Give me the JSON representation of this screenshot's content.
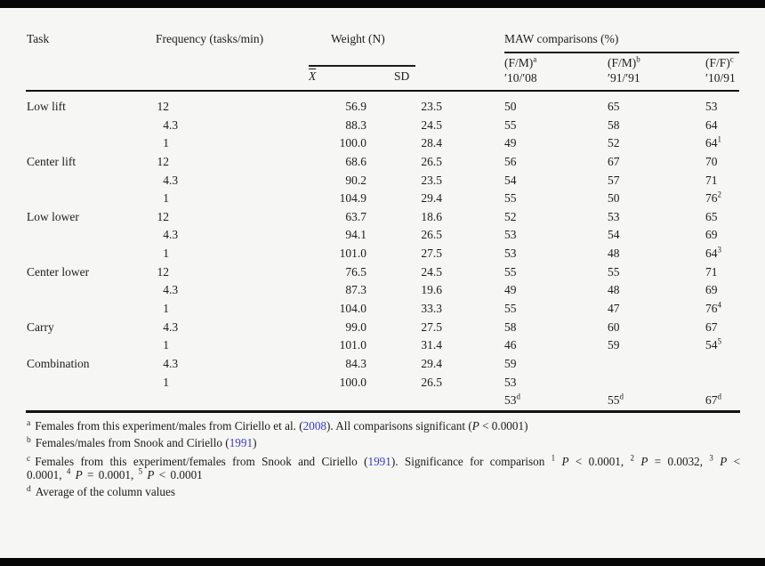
{
  "page": {
    "background": "#f6f6f5",
    "letterbox_color": "#060606",
    "text_color": "#1e1c1a",
    "link_color": "#3838d0"
  },
  "table": {
    "headers": {
      "task": "Task",
      "frequency": "Frequency (tasks/min)",
      "weight_group": "Weight (N)",
      "maw_group": "MAW comparisons (%)",
      "mean": "X",
      "sd": "SD",
      "c1": {
        "label": "(F/M)",
        "sup": "a",
        "years": "′10/′08"
      },
      "c2": {
        "label": "(F/M)",
        "sup": "b",
        "years": "′91/′91"
      },
      "c3": {
        "label": "(F/F)",
        "sup": "c",
        "years": "′10/91"
      }
    },
    "rows": [
      {
        "task": "Low lift",
        "freq": "12",
        "mean": "56.9",
        "sd": "23.5",
        "c1": "50",
        "c1sup": "",
        "c2": "65",
        "c2sup": "",
        "c3": "53",
        "c3sup": ""
      },
      {
        "task": "",
        "freq": "4.3",
        "mean": "88.3",
        "sd": "24.5",
        "c1": "55",
        "c1sup": "",
        "c2": "58",
        "c2sup": "",
        "c3": "64",
        "c3sup": ""
      },
      {
        "task": "",
        "freq": "1",
        "mean": "100.0",
        "sd": "28.4",
        "c1": "49",
        "c1sup": "",
        "c2": "52",
        "c2sup": "",
        "c3": "64",
        "c3sup": "1"
      },
      {
        "task": "Center lift",
        "freq": "12",
        "mean": "68.6",
        "sd": "26.5",
        "c1": "56",
        "c1sup": "",
        "c2": "67",
        "c2sup": "",
        "c3": "70",
        "c3sup": ""
      },
      {
        "task": "",
        "freq": "4.3",
        "mean": "90.2",
        "sd": "23.5",
        "c1": "54",
        "c1sup": "",
        "c2": "57",
        "c2sup": "",
        "c3": "71",
        "c3sup": ""
      },
      {
        "task": "",
        "freq": "1",
        "mean": "104.9",
        "sd": "29.4",
        "c1": "55",
        "c1sup": "",
        "c2": "50",
        "c2sup": "",
        "c3": "76",
        "c3sup": "2"
      },
      {
        "task": "Low lower",
        "freq": "12",
        "mean": "63.7",
        "sd": "18.6",
        "c1": "52",
        "c1sup": "",
        "c2": "53",
        "c2sup": "",
        "c3": "65",
        "c3sup": ""
      },
      {
        "task": "",
        "freq": "4.3",
        "mean": "94.1",
        "sd": "26.5",
        "c1": "53",
        "c1sup": "",
        "c2": "54",
        "c2sup": "",
        "c3": "69",
        "c3sup": ""
      },
      {
        "task": "",
        "freq": "1",
        "mean": "101.0",
        "sd": "27.5",
        "c1": "53",
        "c1sup": "",
        "c2": "48",
        "c2sup": "",
        "c3": "64",
        "c3sup": "3"
      },
      {
        "task": "Center lower",
        "freq": "12",
        "mean": "76.5",
        "sd": "24.5",
        "c1": "55",
        "c1sup": "",
        "c2": "55",
        "c2sup": "",
        "c3": "71",
        "c3sup": ""
      },
      {
        "task": "",
        "freq": "4.3",
        "mean": "87.3",
        "sd": "19.6",
        "c1": "49",
        "c1sup": "",
        "c2": "48",
        "c2sup": "",
        "c3": "69",
        "c3sup": ""
      },
      {
        "task": "",
        "freq": "1",
        "mean": "104.0",
        "sd": "33.3",
        "c1": "55",
        "c1sup": "",
        "c2": "47",
        "c2sup": "",
        "c3": "76",
        "c3sup": "4"
      },
      {
        "task": "Carry",
        "freq": "4.3",
        "mean": "99.0",
        "sd": "27.5",
        "c1": "58",
        "c1sup": "",
        "c2": "60",
        "c2sup": "",
        "c3": "67",
        "c3sup": ""
      },
      {
        "task": "",
        "freq": "1",
        "mean": "101.0",
        "sd": "31.4",
        "c1": "46",
        "c1sup": "",
        "c2": "59",
        "c2sup": "",
        "c3": "54",
        "c3sup": "5"
      },
      {
        "task": "Combination",
        "freq": "4.3",
        "mean": "84.3",
        "sd": "29.4",
        "c1": "59",
        "c1sup": "",
        "c2": "",
        "c2sup": "",
        "c3": "",
        "c3sup": ""
      },
      {
        "task": "",
        "freq": "1",
        "mean": "100.0",
        "sd": "26.5",
        "c1": "53",
        "c1sup": "",
        "c2": "",
        "c2sup": "",
        "c3": "",
        "c3sup": ""
      },
      {
        "task": "",
        "freq": "",
        "mean": "",
        "sd": "",
        "c1": "53",
        "c1sup": "d",
        "c2": "55",
        "c2sup": "d",
        "c3": "67",
        "c3sup": "d"
      }
    ],
    "footnotes": [
      {
        "marker": "a",
        "segments": [
          {
            "t": "Females from this experiment/males from Ciriello et al. ("
          },
          {
            "t": "2008",
            "s": "link"
          },
          {
            "t": "). All comparisons significant ("
          },
          {
            "t": "P",
            "s": "i"
          },
          {
            "t": " < 0.0001)"
          }
        ]
      },
      {
        "marker": "b",
        "segments": [
          {
            "t": "Females/males from Snook and Ciriello ("
          },
          {
            "t": "1991",
            "s": "link"
          },
          {
            "t": ")"
          }
        ]
      },
      {
        "marker": "c",
        "segments": [
          {
            "t": "Females from this experiment/females from Snook and Ciriello ("
          },
          {
            "t": "1991",
            "s": "link"
          },
          {
            "t": "). Significance for comparison "
          },
          {
            "t": "1",
            "s": "sup"
          },
          {
            "t": " "
          },
          {
            "t": "P",
            "s": "i"
          },
          {
            "t": " < 0.0001, "
          },
          {
            "t": "2",
            "s": "sup"
          },
          {
            "t": " "
          },
          {
            "t": "P",
            "s": "i"
          },
          {
            "t": " = 0.0032, "
          },
          {
            "t": "3",
            "s": "sup"
          },
          {
            "t": " "
          },
          {
            "t": "P",
            "s": "i"
          },
          {
            "t": " < 0.0001, "
          },
          {
            "t": "4",
            "s": "sup"
          },
          {
            "t": " "
          },
          {
            "t": "P",
            "s": "i"
          },
          {
            "t": " = 0.0001, "
          },
          {
            "t": "5",
            "s": "sup"
          },
          {
            "t": " "
          },
          {
            "t": "P",
            "s": "i"
          },
          {
            "t": " < 0.0001"
          }
        ]
      },
      {
        "marker": "d",
        "segments": [
          {
            "t": "Average of the column values"
          }
        ]
      }
    ]
  }
}
